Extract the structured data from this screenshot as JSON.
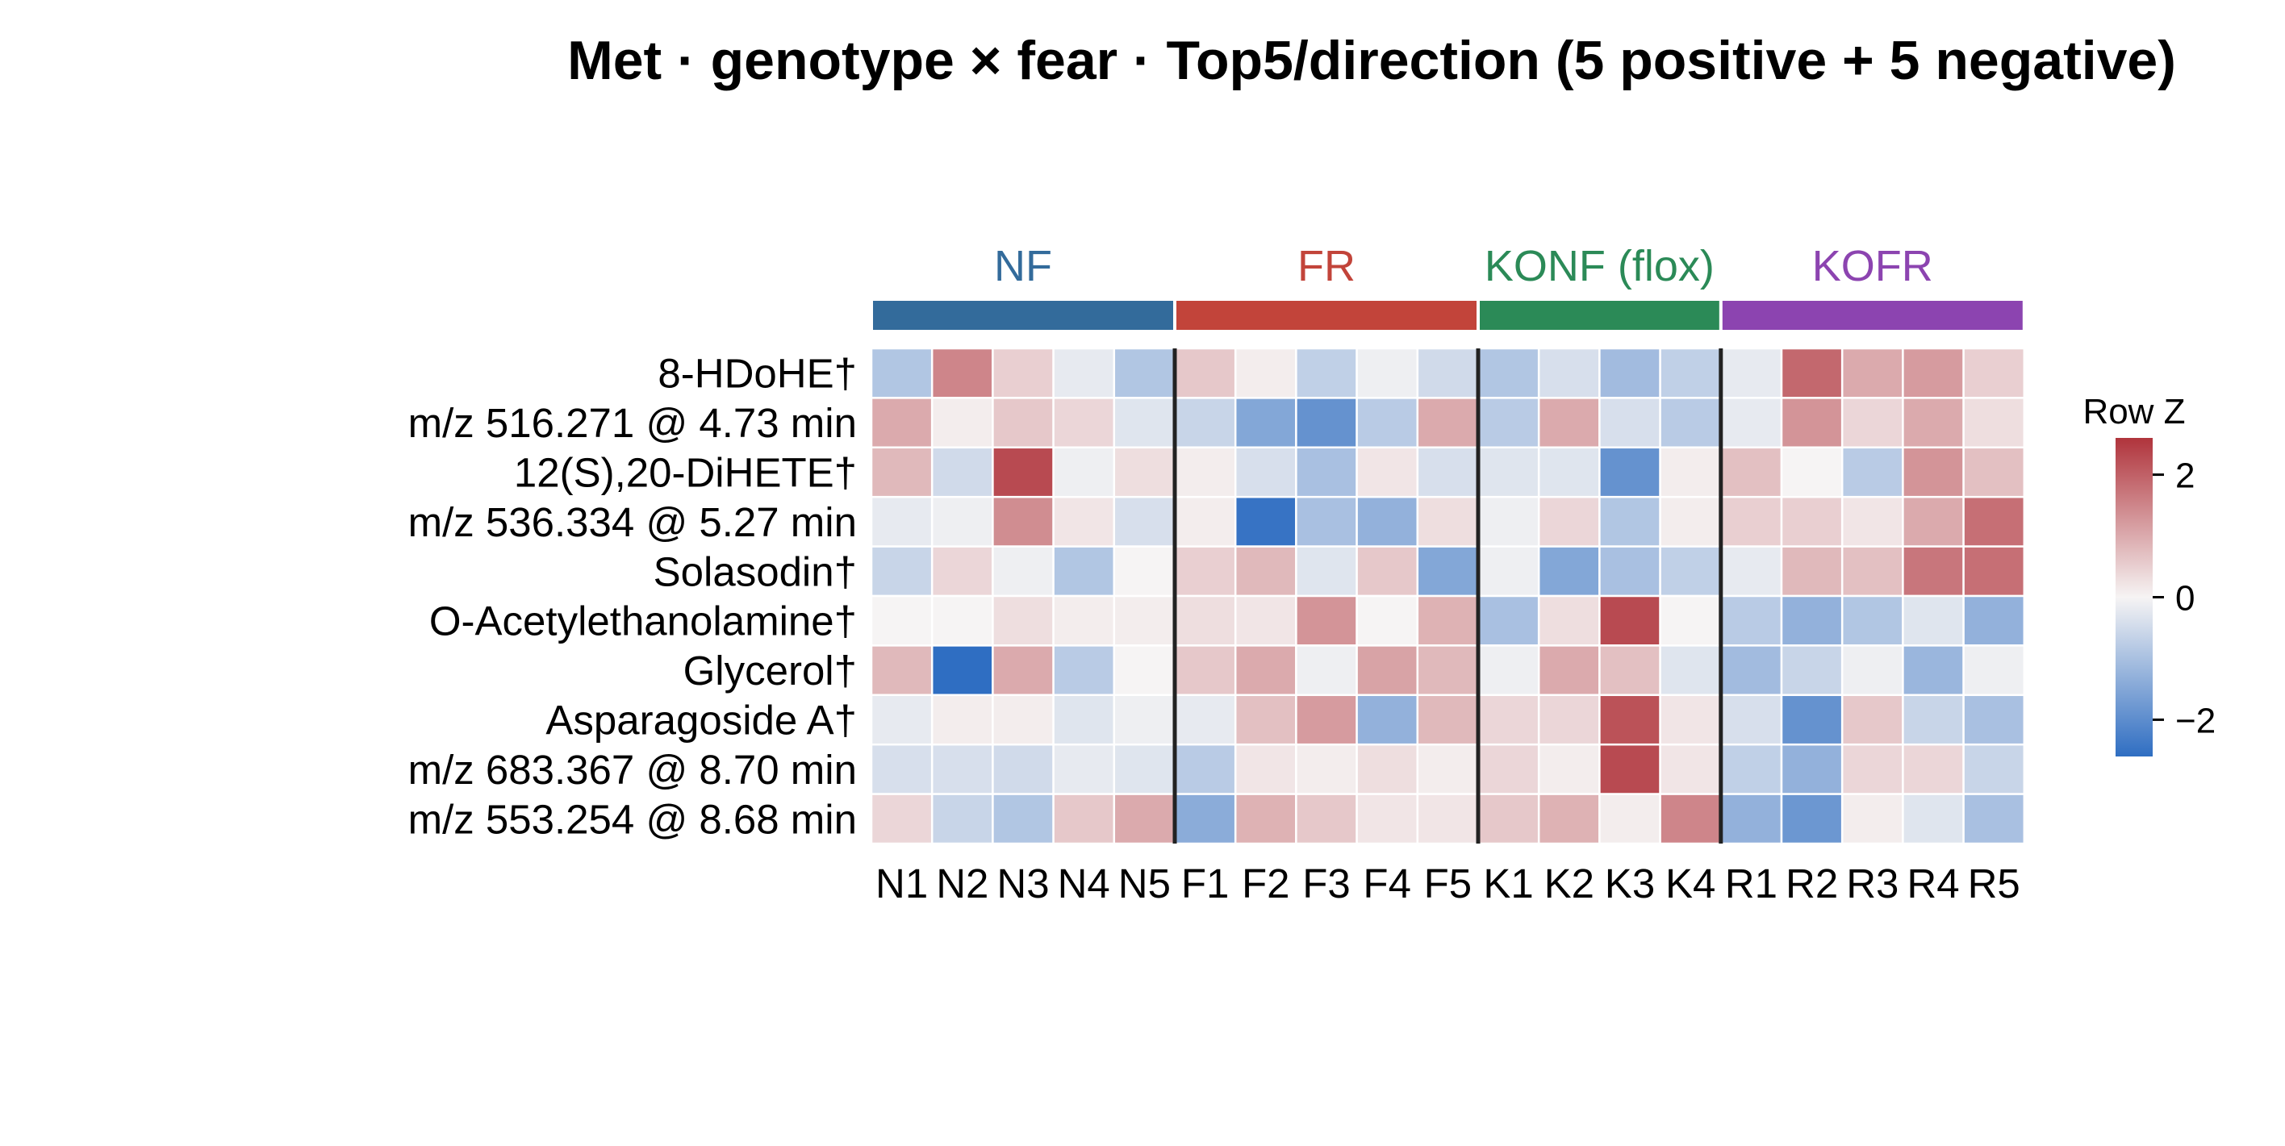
{
  "chart_data": {
    "type": "heatmap",
    "title": "Met · genotype × fear · Top5/direction (5 positive + 5 negative)",
    "groups": [
      {
        "label": "NF",
        "color": "#336b9b",
        "columns": [
          "N1",
          "N2",
          "N3",
          "N4",
          "N5"
        ]
      },
      {
        "label": "FR",
        "color": "#c2443a",
        "columns": [
          "F1",
          "F2",
          "F3",
          "F4",
          "F5"
        ]
      },
      {
        "label": "KONF (flox)",
        "color": "#2b8a57",
        "columns": [
          "K1",
          "K2",
          "K3",
          "K4"
        ]
      },
      {
        "label": "KOFR",
        "color": "#8c44b0",
        "columns": [
          "R1",
          "R2",
          "R3",
          "R4",
          "R5"
        ]
      }
    ],
    "columns": [
      "N1",
      "N2",
      "N3",
      "N4",
      "N5",
      "F1",
      "F2",
      "F3",
      "F4",
      "F5",
      "K1",
      "K2",
      "K3",
      "K4",
      "R1",
      "R2",
      "R3",
      "R4",
      "R5"
    ],
    "rows": [
      "8-HDoHE†",
      "m/z 516.271 @ 4.73 min",
      "12(S),20-DiHETE†",
      "m/z 536.334 @ 5.27 min",
      "Solasodin†",
      "O-Acetylethanolamine†",
      "Glycerol†",
      "Asparagoside A†",
      "m/z 683.367 @ 8.70 min",
      "m/z 553.254 @ 8.68 min"
    ],
    "values": [
      [
        -0.9,
        1.5,
        0.5,
        -0.2,
        -0.9,
        0.6,
        0.1,
        -0.7,
        -0.1,
        -0.5,
        -0.9,
        -0.4,
        -1.1,
        -0.7,
        -0.2,
        1.9,
        1.0,
        1.2,
        0.5
      ],
      [
        1.0,
        0.1,
        0.6,
        0.4,
        -0.3,
        -0.6,
        -1.5,
        -1.9,
        -0.8,
        1.0,
        -0.8,
        1.0,
        -0.4,
        -0.8,
        -0.2,
        1.3,
        0.4,
        1.0,
        0.3
      ],
      [
        0.8,
        -0.5,
        2.3,
        -0.1,
        0.3,
        0.1,
        -0.4,
        -1.0,
        0.2,
        -0.4,
        -0.3,
        -0.3,
        -1.9,
        0.1,
        0.7,
        0.0,
        -0.8,
        1.3,
        0.7
      ],
      [
        -0.2,
        -0.1,
        1.4,
        0.2,
        -0.4,
        0.1,
        -2.5,
        -1.0,
        -1.3,
        0.3,
        -0.1,
        0.4,
        -0.9,
        0.1,
        0.5,
        0.5,
        0.2,
        1.0,
        1.8
      ],
      [
        -0.6,
        0.4,
        -0.1,
        -0.9,
        0.0,
        0.5,
        0.8,
        -0.3,
        0.6,
        -1.5,
        -0.1,
        -1.5,
        -1.0,
        -0.7,
        -0.2,
        0.8,
        0.7,
        1.7,
        1.8
      ],
      [
        0.0,
        0.0,
        0.3,
        0.1,
        0.1,
        0.3,
        0.2,
        1.3,
        0.0,
        0.9,
        -1.0,
        0.3,
        2.3,
        0.0,
        -0.8,
        -1.3,
        -0.9,
        -0.3,
        -1.3
      ],
      [
        0.8,
        -2.6,
        1.0,
        -0.8,
        0.0,
        0.6,
        1.0,
        -0.1,
        1.1,
        0.8,
        -0.1,
        1.0,
        0.7,
        -0.3,
        -1.1,
        -0.6,
        -0.1,
        -1.2,
        -0.1
      ],
      [
        -0.2,
        0.1,
        0.1,
        -0.3,
        -0.1,
        -0.2,
        0.7,
        1.2,
        -1.3,
        0.8,
        0.4,
        0.4,
        2.2,
        0.2,
        -0.4,
        -1.9,
        0.6,
        -0.6,
        -1.0
      ],
      [
        -0.4,
        -0.4,
        -0.5,
        -0.2,
        -0.3,
        -0.8,
        0.2,
        0.1,
        0.3,
        0.1,
        0.4,
        0.1,
        2.3,
        0.2,
        -0.7,
        -1.3,
        0.4,
        0.4,
        -0.6
      ],
      [
        0.4,
        -0.6,
        -0.9,
        0.6,
        1.0,
        -1.4,
        0.9,
        0.6,
        0.2,
        0.2,
        0.6,
        0.9,
        0.1,
        1.5,
        -1.3,
        -1.8,
        0.1,
        -0.3,
        -1.0
      ]
    ],
    "colorbar": {
      "title": "Row Z",
      "range": [
        -2.6,
        2.6
      ],
      "ticks": [
        2,
        0,
        -2
      ],
      "tick_labels": [
        "2",
        "0",
        "−2"
      ],
      "colors": {
        "low": "#2f6ec2",
        "mid": "#f6f4f4",
        "high": "#b0343c"
      }
    }
  }
}
